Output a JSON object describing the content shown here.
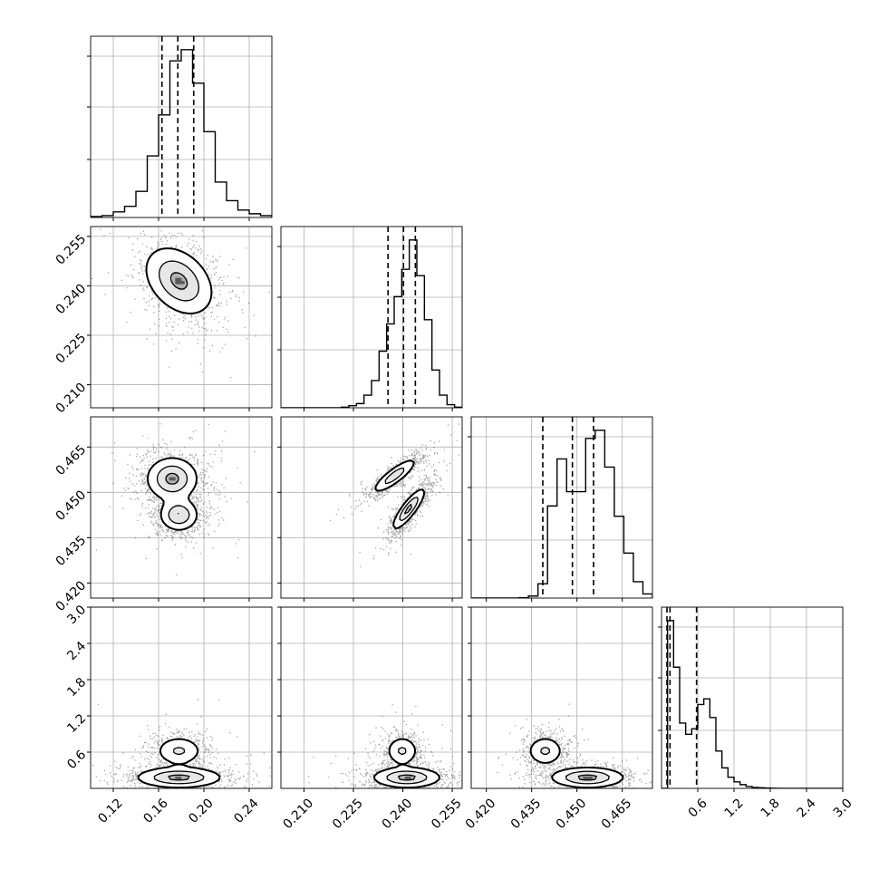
{
  "chart_data": {
    "type": "corner",
    "title": "",
    "dims": [
      {
        "xlim": [
          0.1,
          0.26
        ],
        "ticks": [
          0.12,
          0.16,
          0.2,
          0.24
        ],
        "tick_labels": [
          "0.12",
          "0.16",
          "0.20",
          "0.24"
        ],
        "hist": {
          "heights": [
            0.5,
            1,
            3,
            6,
            14,
            33,
            55,
            84,
            90,
            72,
            46,
            19,
            9,
            4,
            2,
            1
          ],
          "quantiles": [
            0.163,
            0.177,
            0.191
          ]
        }
      },
      {
        "xlim": [
          0.203,
          0.258
        ],
        "ticks": [
          0.21,
          0.225,
          0.24,
          0.255
        ],
        "tick_labels": [
          "0.210",
          "0.225",
          "0.240",
          "0.255"
        ],
        "hist": {
          "heights": [
            0,
            0,
            0,
            0,
            0,
            0,
            0,
            0,
            0.3,
            1,
            2,
            6,
            13,
            27,
            40,
            53,
            66,
            80,
            63,
            42,
            18,
            6,
            1.5,
            0.3
          ],
          "quantiles": [
            0.2355,
            0.2402,
            0.2438
          ]
        }
      },
      {
        "xlim": [
          0.415,
          0.475
        ],
        "ticks": [
          0.42,
          0.435,
          0.45,
          0.465
        ],
        "tick_labels": [
          "0.420",
          "0.435",
          "0.450",
          "0.465"
        ],
        "hist": {
          "heights": [
            0,
            0,
            0,
            0,
            0,
            0.2,
            1,
            7,
            45,
            68,
            52,
            52,
            78,
            82,
            64,
            40,
            22,
            8,
            2
          ],
          "quantiles": [
            0.4387,
            0.4485,
            0.4555
          ]
        }
      },
      {
        "xlim": [
          0.0,
          3.0
        ],
        "ticks": [
          0.6,
          1.2,
          1.8,
          2.4,
          3.0
        ],
        "tick_labels": [
          "0.6",
          "1.2",
          "1.8",
          "2.4",
          "3.0"
        ],
        "hist": {
          "heights": [
            0,
            90,
            65,
            35,
            29,
            32,
            45,
            48,
            38,
            20,
            11,
            6,
            3.5,
            2,
            1,
            0.5,
            0.3,
            0.2,
            0.1,
            0,
            0,
            0,
            0,
            0,
            0,
            0,
            0,
            0,
            0,
            0
          ],
          "quantiles": [
            0.09,
            0.14,
            0.58
          ]
        }
      }
    ],
    "pairs": [
      {
        "row": 1,
        "col": 0,
        "peaks": [
          {
            "x": 0.178,
            "y": 0.2415,
            "sx": 0.016,
            "sy": 0.0055,
            "rho": -0.35,
            "w": 1
          }
        ],
        "contours": [
          0.9,
          0.55,
          0.2
        ]
      },
      {
        "row": 2,
        "col": 0,
        "peaks": [
          {
            "x": 0.172,
            "y": 0.4545,
            "sx": 0.012,
            "sy": 0.0038,
            "rho": 0,
            "w": 1
          },
          {
            "x": 0.178,
            "y": 0.4425,
            "sx": 0.009,
            "sy": 0.0028,
            "rho": 0,
            "w": 0.9
          }
        ],
        "contours": [
          0.9,
          0.55,
          0.2
        ]
      },
      {
        "row": 2,
        "col": 1,
        "peaks": [
          {
            "x": 0.2375,
            "y": 0.4555,
            "sx": 0.0035,
            "sy": 0.003,
            "rho": 0.85,
            "w": 0.8
          },
          {
            "x": 0.2418,
            "y": 0.4445,
            "sx": 0.0026,
            "sy": 0.0036,
            "rho": 0.85,
            "w": 1
          }
        ],
        "contours": [
          0.9,
          0.55,
          0.2
        ]
      },
      {
        "row": 3,
        "col": 0,
        "peaks": [
          {
            "x": 0.178,
            "y": 0.62,
            "sx": 0.011,
            "sy": 0.13,
            "rho": 0,
            "w": 0.6
          },
          {
            "x": 0.178,
            "y": 0.18,
            "sx": 0.02,
            "sy": 0.09,
            "rho": 0,
            "w": 1
          }
        ],
        "contours": [
          0.9,
          0.55,
          0.2
        ]
      },
      {
        "row": 3,
        "col": 1,
        "peaks": [
          {
            "x": 0.2398,
            "y": 0.62,
            "sx": 0.0026,
            "sy": 0.13,
            "rho": 0,
            "w": 0.6
          },
          {
            "x": 0.2412,
            "y": 0.18,
            "sx": 0.0055,
            "sy": 0.09,
            "rho": 0,
            "w": 1
          }
        ],
        "contours": [
          0.9,
          0.55,
          0.2
        ]
      },
      {
        "row": 3,
        "col": 2,
        "peaks": [
          {
            "x": 0.4395,
            "y": 0.62,
            "sx": 0.0032,
            "sy": 0.13,
            "rho": 0,
            "w": 0.6
          },
          {
            "x": 0.4535,
            "y": 0.18,
            "sx": 0.0065,
            "sy": 0.09,
            "rho": 0,
            "w": 1
          }
        ],
        "contours": [
          0.9,
          0.55,
          0.2
        ]
      }
    ],
    "ylabels": {
      "1": {
        "lim": [
          0.203,
          0.258
        ],
        "ticks": [
          0.21,
          0.225,
          0.24,
          0.255
        ],
        "tick_labels": [
          "0.210",
          "0.225",
          "0.240",
          "0.255"
        ]
      },
      "2": {
        "lim": [
          0.415,
          0.475
        ],
        "ticks": [
          0.42,
          0.435,
          0.45,
          0.465
        ],
        "tick_labels": [
          "0.420",
          "0.435",
          "0.450",
          "0.465"
        ]
      },
      "3": {
        "lim": [
          0.0,
          3.0
        ],
        "ticks": [
          0.6,
          1.2,
          1.8,
          2.4,
          3.0
        ],
        "tick_labels": [
          "0.6",
          "1.2",
          "1.8",
          "2.4",
          "3.0"
        ]
      }
    },
    "grid": true,
    "colors": {
      "lines": "#000000",
      "grid": "#b0b0b0",
      "points": "#000000"
    }
  }
}
